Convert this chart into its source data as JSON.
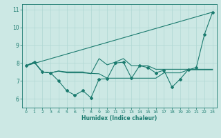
{
  "title": "",
  "xlabel": "Humidex (Indice chaleur)",
  "ylabel": "",
  "background_color": "#cce8e4",
  "line_color": "#1a7a6e",
  "grid_color": "#b0d8d4",
  "xlim": [
    -0.5,
    23.5
  ],
  "ylim": [
    5.5,
    11.3
  ],
  "yticks": [
    6,
    7,
    8,
    9,
    10,
    11
  ],
  "xticks": [
    0,
    1,
    2,
    3,
    4,
    5,
    6,
    7,
    8,
    9,
    10,
    11,
    12,
    13,
    14,
    15,
    16,
    17,
    18,
    19,
    20,
    21,
    22,
    23
  ],
  "series": [
    {
      "x": [
        0,
        1,
        2,
        3,
        4,
        5,
        6,
        7,
        8,
        9,
        10,
        11,
        12,
        13,
        14,
        15,
        16,
        17,
        18,
        19,
        20,
        21,
        22,
        23
      ],
      "y": [
        7.85,
        8.05,
        7.5,
        7.45,
        7.0,
        6.45,
        6.2,
        6.45,
        6.05,
        7.1,
        7.12,
        8.0,
        8.05,
        7.15,
        7.85,
        7.75,
        7.45,
        7.6,
        6.65,
        7.1,
        7.62,
        7.75,
        9.6,
        10.85
      ],
      "marker": "D",
      "markersize": 2,
      "linewidth": 0.8
    },
    {
      "x": [
        0,
        23
      ],
      "y": [
        7.85,
        10.85
      ],
      "marker": null,
      "markersize": 0,
      "linewidth": 0.8
    },
    {
      "x": [
        0,
        1,
        2,
        3,
        4,
        5,
        6,
        7,
        8,
        9,
        10,
        11,
        12,
        13,
        14,
        15,
        16,
        17,
        18,
        19,
        20,
        21,
        22,
        23
      ],
      "y": [
        7.85,
        8.05,
        7.5,
        7.45,
        7.55,
        7.45,
        7.45,
        7.45,
        7.42,
        7.4,
        7.15,
        7.15,
        7.15,
        7.15,
        7.15,
        7.15,
        7.15,
        7.45,
        7.45,
        7.45,
        7.62,
        7.62,
        7.62,
        7.62
      ],
      "marker": null,
      "markersize": 0,
      "linewidth": 0.8
    },
    {
      "x": [
        0,
        1,
        2,
        3,
        4,
        5,
        6,
        7,
        8,
        9,
        10,
        11,
        12,
        13,
        14,
        15,
        16,
        17,
        18,
        19,
        20,
        21,
        22,
        23
      ],
      "y": [
        7.85,
        8.05,
        7.5,
        7.45,
        7.55,
        7.5,
        7.5,
        7.5,
        7.4,
        8.25,
        7.9,
        8.05,
        8.25,
        7.85,
        7.85,
        7.85,
        7.65,
        7.65,
        7.65,
        7.65,
        7.65,
        7.65,
        7.65,
        7.65
      ],
      "marker": null,
      "markersize": 0,
      "linewidth": 0.8
    }
  ]
}
